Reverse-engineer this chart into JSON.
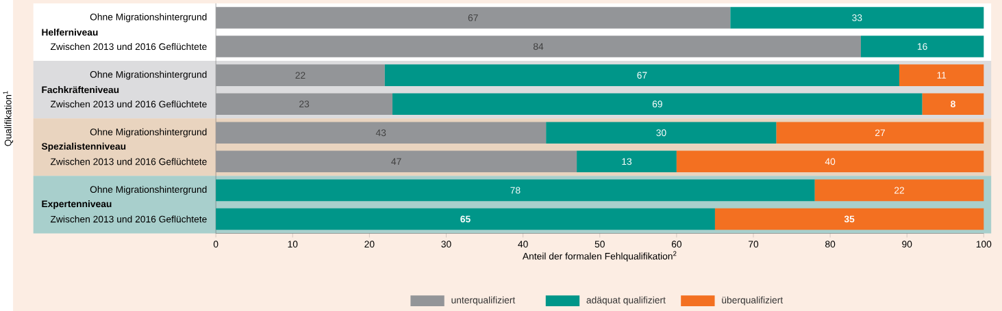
{
  "chart_data": {
    "type": "bar",
    "orientation": "horizontal",
    "stacked": true,
    "ylabel": "Qualifikation$^{1}$",
    "xlabel": "Anteil der formalen Fehlqualifikation$^{2}$",
    "categories": [
      "Ohne Migrationshintergrund",
      "Zwischen 2013 und 2016 Geflüchtete",
      "Ohne Migrationshintergrund",
      "Zwischen 2013 und 2016 Geflüchtete",
      "Ohne Migrationshintergrund",
      "Zwischen 2013 und 2016 Geflüchtete",
      "Ohne Migrationshintergrund",
      "Zwischen 2013 und 2016 Geflüchtete"
    ],
    "series": [
      {
        "name": "unterqualifiziert",
        "color": "#939598",
        "values": [
          67,
          84,
          22,
          23,
          43,
          47,
          null,
          null
        ],
        "value_labels": [
          "67",
          "84",
          "22",
          "23",
          "43",
          "47",
          null,
          null
        ]
      },
      {
        "name": "adäquat qualifiziert",
        "color": "#009689",
        "values": [
          33,
          16,
          67,
          69,
          30,
          13,
          78,
          65
        ],
        "value_labels": [
          "33",
          "16",
          "67",
          "69",
          "30",
          "13",
          "78",
          "**65**"
        ]
      },
      {
        "name": "überqualifiziert",
        "color": "#f37021",
        "values": [
          null,
          null,
          11,
          8,
          27,
          40,
          22,
          35
        ],
        "value_labels": [
          null,
          null,
          "11",
          "**8**",
          "27",
          "40",
          "22",
          "**35**"
        ]
      }
    ],
    "annotations": [
      "Helferniveau",
      "Fachkräfteniveau",
      "Spezialistenniveau",
      "Expertenniveau"
    ],
    "xlim": [
      0,
      100
    ],
    "xticks": [
      0,
      10,
      20,
      30,
      40,
      50,
      60,
      70,
      80,
      90,
      100
    ],
    "legend": "bottom",
    "grid": false
  }
}
